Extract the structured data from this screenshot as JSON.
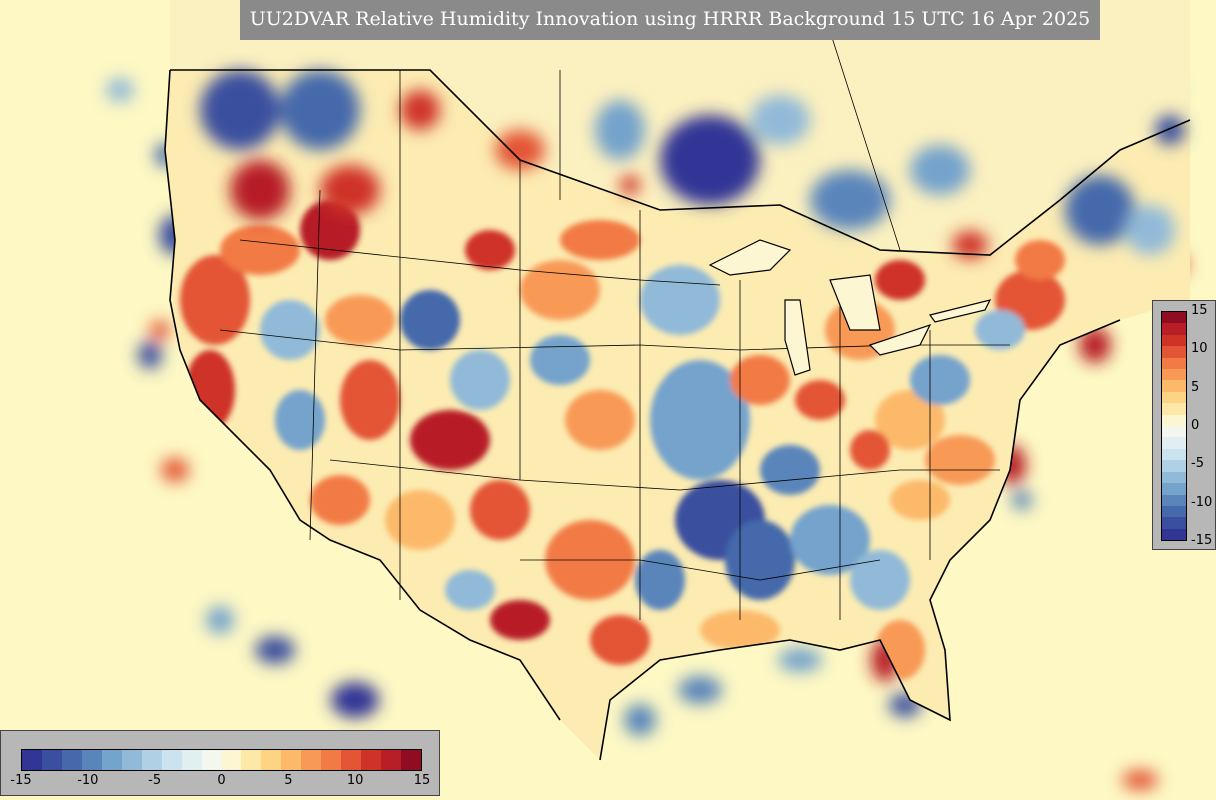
{
  "title": "UU2DVAR Relative Humidity Innovation using HRRR Background 15 UTC 16 Apr 2025",
  "colorbar": {
    "min": -15,
    "max": 15,
    "right_ticks": [
      "15",
      "10",
      "5",
      "0",
      "-5",
      "-10",
      "-15"
    ],
    "bottom_ticks": [
      "-15",
      "-10",
      "-5",
      "0",
      "5",
      "10",
      "15"
    ],
    "colors": [
      "#313695",
      "#3a4f9f",
      "#4569ab",
      "#5a85bb",
      "#74a3cc",
      "#91bad8",
      "#b0d1e5",
      "#cbe3ee",
      "#e2eff2",
      "#f4f7ee",
      "#fcf6d3",
      "#fde8a7",
      "#fdd384",
      "#fcb96a",
      "#f89a56",
      "#f27a45",
      "#e35535",
      "#cf3328",
      "#b71e25",
      "#8f0c22"
    ]
  },
  "colors": {
    "ocean_background": "#fdf8c4",
    "title_bar": "#8a8a8a",
    "colorbar_panel": "#b7b7b7"
  }
}
